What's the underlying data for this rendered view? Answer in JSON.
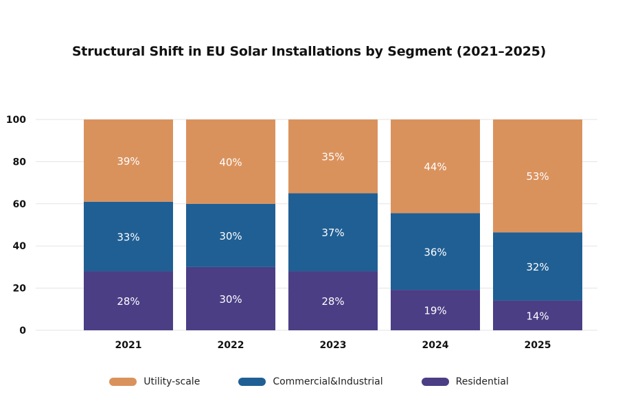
{
  "chart_data": {
    "type": "bar",
    "stacked": true,
    "title": "Structural Shift in EU Solar Installations by Segment (2021–2025)",
    "xlabel": "",
    "ylabel": "",
    "ylim": [
      0,
      100
    ],
    "yticks": [
      "0",
      "20",
      "40",
      "60",
      "80",
      "100"
    ],
    "grid": true,
    "legend_position": "bottom",
    "categories": [
      "2021",
      "2022",
      "2023",
      "2024",
      "2025"
    ],
    "series": [
      {
        "name": "Residential",
        "color": "#4b3e85",
        "values": [
          28,
          30,
          28,
          19,
          14
        ],
        "labels": [
          "28%",
          "30%",
          "28%",
          "19%",
          "14%"
        ]
      },
      {
        "name": "Commercial&Industrial",
        "color": "#205f94",
        "values": [
          33,
          30,
          37,
          36,
          32
        ],
        "labels": [
          "33%",
          "30%",
          "37%",
          "36%",
          "32%"
        ]
      },
      {
        "name": "Utility-scale",
        "color": "#da925d",
        "values": [
          39,
          40,
          35,
          44,
          53
        ],
        "labels": [
          "39%",
          "40%",
          "35%",
          "44%",
          "53%"
        ]
      }
    ],
    "legend_order": [
      "Utility-scale",
      "Commercial&Industrial",
      "Residential"
    ]
  }
}
